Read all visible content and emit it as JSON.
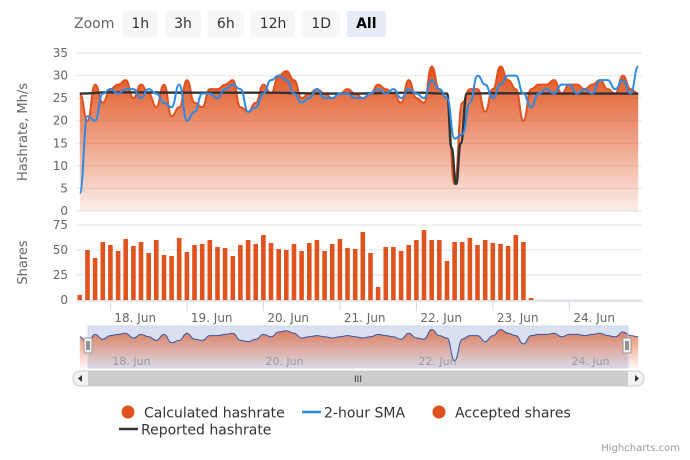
{
  "zoom": {
    "label": "Zoom",
    "buttons": [
      "1h",
      "3h",
      "6h",
      "12h",
      "1D",
      "All"
    ],
    "active": "All"
  },
  "credits": "Highcharts.com",
  "chart_data": {
    "type": "line",
    "colors": {
      "calculated": "#e0521e",
      "sma": "#2b8be6",
      "reported": "#333333",
      "shares": "#e0521e"
    },
    "x_ticks": [
      "18. Jun",
      "19. Jun",
      "20. Jun",
      "21. Jun",
      "22. Jun",
      "23. Jun",
      "24. Jun"
    ],
    "x_range_days": [
      17.55,
      24.95
    ],
    "hashrate_panel": {
      "ylabel": "Hashrate, Mh/s",
      "ylim": [
        0,
        35
      ],
      "yticks": [
        0,
        5,
        10,
        15,
        20,
        25,
        30,
        35
      ]
    },
    "shares_panel": {
      "ylabel": "Shares",
      "ylim": [
        0,
        75
      ],
      "yticks": [
        0,
        25,
        50,
        75
      ]
    },
    "calculated_hashrate": {
      "name": "Calculated hashrate",
      "x": [
        17.6,
        17.7,
        17.8,
        17.9,
        18.0,
        18.1,
        18.2,
        18.3,
        18.4,
        18.5,
        18.6,
        18.7,
        18.8,
        18.9,
        19.0,
        19.1,
        19.2,
        19.3,
        19.4,
        19.5,
        19.6,
        19.7,
        19.8,
        19.9,
        20.0,
        20.1,
        20.2,
        20.3,
        20.4,
        20.5,
        20.6,
        20.7,
        20.8,
        20.9,
        21.0,
        21.1,
        21.2,
        21.3,
        21.4,
        21.5,
        21.6,
        21.7,
        21.8,
        21.9,
        22.0,
        22.1,
        22.2,
        22.3,
        22.4,
        22.5,
        22.6,
        22.7,
        22.8,
        22.9,
        23.0,
        23.1,
        23.2,
        23.3,
        23.4,
        23.5,
        23.6,
        23.7,
        23.8,
        23.9,
        24.0,
        24.1,
        24.2,
        24.3,
        24.4,
        24.5,
        24.6,
        24.7,
        24.8,
        24.9
      ],
      "values": [
        26,
        20,
        28,
        24,
        27,
        28,
        29,
        25,
        28,
        26,
        23,
        28,
        21,
        23,
        29,
        24,
        23,
        27,
        27,
        28,
        29,
        23,
        22,
        24,
        28,
        26,
        30,
        31,
        29,
        25,
        26,
        27,
        26,
        25,
        26,
        27,
        26,
        25,
        26,
        28,
        27,
        26,
        24,
        29,
        25,
        24,
        32,
        27,
        25,
        6,
        24,
        27,
        27,
        22,
        27,
        32,
        29,
        27,
        20,
        27,
        28,
        28,
        29,
        26,
        28,
        28,
        27,
        28,
        29,
        27,
        26,
        30,
        27,
        26
      ]
    },
    "sma_2h": {
      "name": "2-hour SMA",
      "x": [
        17.6,
        17.7,
        17.8,
        17.9,
        18.0,
        18.1,
        18.2,
        18.3,
        18.4,
        18.5,
        18.6,
        18.7,
        18.8,
        18.9,
        19.0,
        19.1,
        19.2,
        19.3,
        19.4,
        19.5,
        19.6,
        19.7,
        19.8,
        19.9,
        20.0,
        20.1,
        20.2,
        20.3,
        20.4,
        20.5,
        20.6,
        20.7,
        20.8,
        20.9,
        21.0,
        21.1,
        21.2,
        21.3,
        21.4,
        21.5,
        21.6,
        21.7,
        21.8,
        21.9,
        22.0,
        22.1,
        22.2,
        22.3,
        22.4,
        22.5,
        22.6,
        22.7,
        22.8,
        22.9,
        23.0,
        23.1,
        23.2,
        23.3,
        23.4,
        23.5,
        23.6,
        23.7,
        23.8,
        23.9,
        24.0,
        24.1,
        24.2,
        24.3,
        24.4,
        24.5,
        24.6,
        24.7,
        24.8,
        24.9
      ],
      "values": [
        4,
        21,
        20,
        26,
        27,
        26,
        27,
        27,
        25,
        27,
        26,
        24,
        23,
        28,
        20,
        22,
        26,
        26,
        25,
        27,
        28,
        27,
        22,
        23,
        26,
        29,
        30,
        29,
        26,
        24,
        25,
        27,
        25,
        25,
        26,
        26,
        25,
        25,
        26,
        27,
        26,
        27,
        25,
        27,
        26,
        25,
        29,
        27,
        25,
        16,
        17,
        24,
        30,
        28,
        25,
        28,
        30,
        30,
        26,
        23,
        26,
        27,
        26,
        28,
        28,
        26,
        27,
        26,
        29,
        29,
        27,
        29,
        26,
        32
      ]
    },
    "reported_hashrate": {
      "name": "Reported hashrate",
      "x": [
        17.6,
        18.0,
        19.0,
        20.0,
        21.0,
        22.0,
        22.4,
        22.46,
        22.52,
        22.58,
        22.66,
        23.0,
        24.0,
        24.9
      ],
      "values": [
        26,
        26.3,
        26.2,
        26.2,
        26,
        26.2,
        26,
        14,
        6,
        15,
        26,
        26.1,
        26,
        26
      ]
    },
    "accepted_shares": {
      "name": "Accepted shares",
      "x": [
        17.6,
        17.7,
        17.8,
        17.9,
        18.0,
        18.1,
        18.2,
        18.3,
        18.4,
        18.5,
        18.6,
        18.7,
        18.8,
        18.9,
        19.0,
        19.1,
        19.2,
        19.3,
        19.4,
        19.5,
        19.6,
        19.7,
        19.8,
        19.9,
        20.0,
        20.1,
        20.2,
        20.3,
        20.4,
        20.5,
        20.6,
        20.7,
        20.8,
        20.9,
        21.0,
        21.1,
        21.2,
        21.3,
        21.4,
        21.5,
        21.6,
        21.7,
        21.8,
        21.9,
        22.0,
        22.1,
        22.2,
        22.3,
        22.4,
        22.5,
        22.6,
        22.7,
        22.8,
        22.9,
        23.0,
        23.1,
        23.2,
        23.3,
        23.4,
        23.5,
        23.6,
        23.7,
        23.8,
        23.9,
        24.0,
        24.1,
        24.2,
        24.3,
        24.4,
        24.5,
        24.6,
        24.7,
        24.8,
        24.9
      ],
      "values": [
        5,
        50,
        42,
        58,
        55,
        49,
        61,
        54,
        58,
        47,
        60,
        45,
        44,
        62,
        48,
        55,
        56,
        60,
        53,
        52,
        44,
        55,
        60,
        56,
        65,
        57,
        51,
        50,
        56,
        49,
        57,
        60,
        49,
        56,
        61,
        52,
        51,
        68,
        47,
        13,
        53,
        53,
        49,
        55,
        60,
        70,
        60,
        60,
        39,
        58,
        58,
        62,
        55,
        60,
        57,
        56,
        54,
        65,
        58,
        2,
        0,
        0,
        0,
        0,
        0,
        0,
        0,
        0,
        0,
        0,
        0,
        0,
        0,
        0
      ]
    },
    "navigator": {
      "range": "all",
      "scrollbar_label": "III"
    },
    "legend": [
      "Calculated hashrate",
      "2-hour SMA",
      "Accepted shares",
      "Reported hashrate"
    ],
    "legend_position": "bottom"
  }
}
